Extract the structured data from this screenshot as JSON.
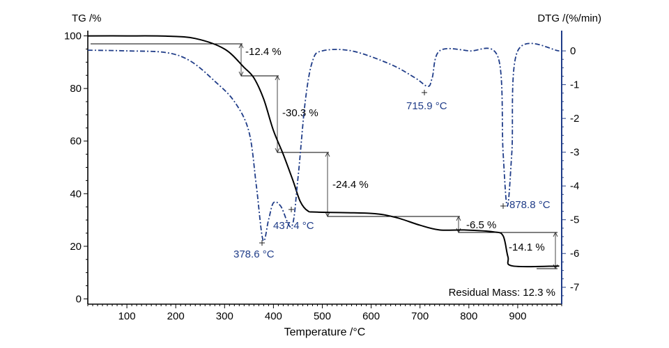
{
  "chart_data": {
    "type": "line",
    "xlabel": "Temperature /°C",
    "ylabel_left": "TG /%",
    "ylabel_right": "DTG /(%/min)",
    "xlim": [
      20,
      990
    ],
    "ylim_left": [
      -2,
      102
    ],
    "ylim_right": [
      -7.5,
      0.6
    ],
    "x_ticks": [
      100,
      200,
      300,
      400,
      500,
      600,
      700,
      800,
      900
    ],
    "y_ticks_left": [
      0,
      20,
      40,
      60,
      80,
      100
    ],
    "y_ticks_right": [
      0,
      -1,
      -2,
      -3,
      -4,
      -5,
      -6,
      -7
    ],
    "grid": false,
    "colors": {
      "tg": "#000000",
      "dtg": "#1f3c88",
      "right_axis": "#1f3c88"
    },
    "series": [
      {
        "axis": "left",
        "style": "solid",
        "points": [
          [
            20,
            100
          ],
          [
            100,
            100
          ],
          [
            180,
            99.9
          ],
          [
            240,
            99
          ],
          [
            300,
            95
          ],
          [
            340,
            88
          ],
          [
            360,
            84
          ],
          [
            380,
            76
          ],
          [
            400,
            64
          ],
          [
            420,
            55
          ],
          [
            440,
            45
          ],
          [
            455,
            37
          ],
          [
            470,
            33.5
          ],
          [
            490,
            33
          ],
          [
            600,
            32.5
          ],
          [
            650,
            31
          ],
          [
            700,
            28
          ],
          [
            740,
            26.2
          ],
          [
            790,
            26.2
          ],
          [
            850,
            25.5
          ],
          [
            870,
            24
          ],
          [
            880,
            16
          ],
          [
            890,
            12.5
          ],
          [
            985,
            12.5
          ]
        ]
      },
      {
        "axis": "right",
        "style": "dashdot",
        "points": [
          [
            20,
            0.02
          ],
          [
            100,
            0
          ],
          [
            180,
            -0.05
          ],
          [
            230,
            -0.3
          ],
          [
            280,
            -0.9
          ],
          [
            320,
            -1.5
          ],
          [
            350,
            -2.4
          ],
          [
            365,
            -4.0
          ],
          [
            378.6,
            -5.6
          ],
          [
            390,
            -5.0
          ],
          [
            400,
            -4.5
          ],
          [
            415,
            -4.6
          ],
          [
            437.4,
            -5.2
          ],
          [
            450,
            -3.8
          ],
          [
            465,
            -1.5
          ],
          [
            480,
            -0.3
          ],
          [
            500,
            0
          ],
          [
            560,
            0
          ],
          [
            640,
            -0.4
          ],
          [
            690,
            -0.8
          ],
          [
            715.9,
            -1.05
          ],
          [
            725,
            -0.8
          ],
          [
            740,
            0
          ],
          [
            800,
            0
          ],
          [
            860,
            -0.2
          ],
          [
            870,
            -3
          ],
          [
            878.8,
            -4.6
          ],
          [
            888,
            -3
          ],
          [
            900,
            0
          ],
          [
            985,
            0
          ]
        ]
      }
    ],
    "steps": [
      "-12.4 %",
      "-30.3 %",
      "-24.4 %",
      "-6.5 %",
      "-14.1 %"
    ],
    "peaks": [
      "378.6 °C",
      "437.4 °C",
      "715.9 °C",
      "878.8 °C"
    ],
    "annotation": "Residual Mass: 12.3 %"
  }
}
